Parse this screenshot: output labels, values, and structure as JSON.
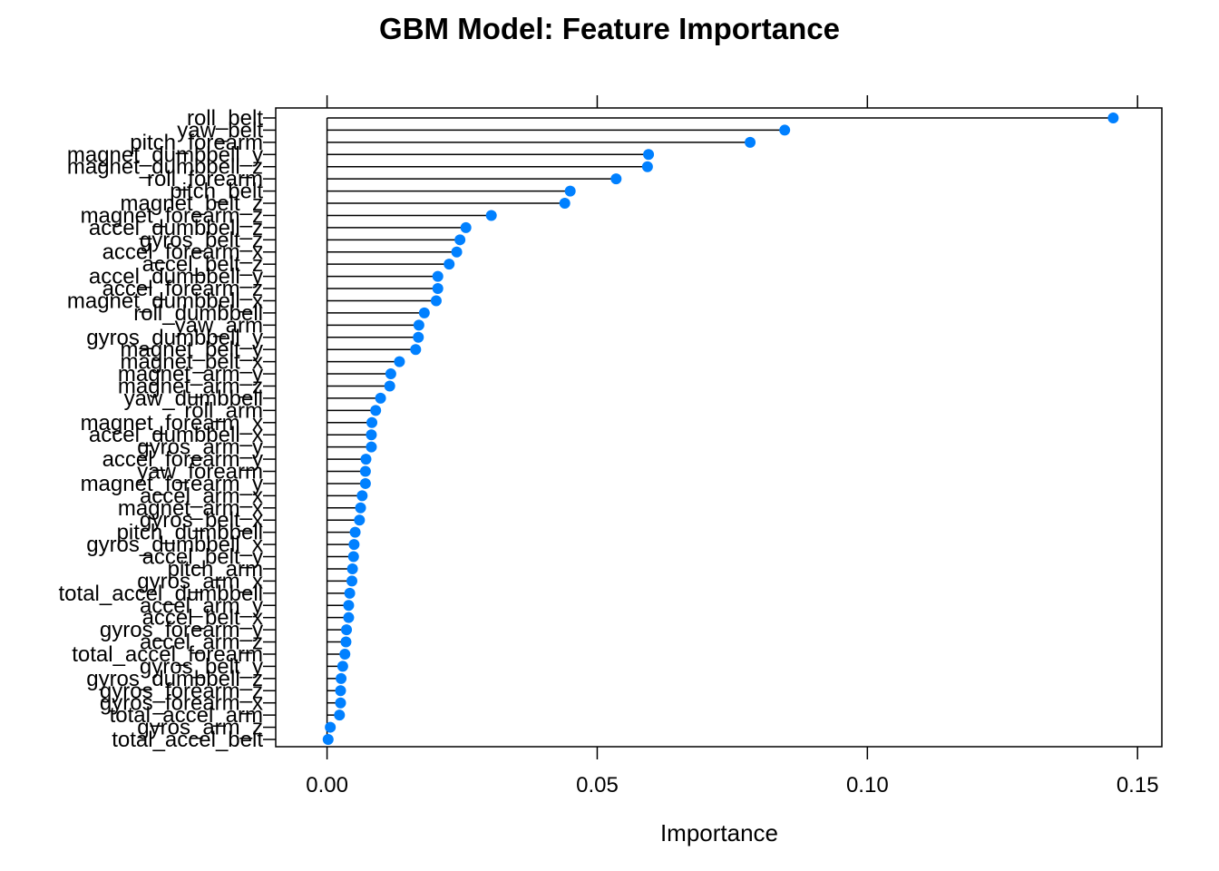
{
  "chart_data": {
    "type": "dot",
    "title": "GBM Model: Feature Importance",
    "xlabel": "Importance",
    "ylabel": "",
    "xlim": [
      -0.0095,
      0.1545
    ],
    "x_ticks": [
      "0.00",
      "0.05",
      "0.10",
      "0.15"
    ],
    "x_tick_values": [
      0,
      0.05,
      0.1,
      0.15
    ],
    "point_color": "#0080ff",
    "grid": false,
    "series": [
      {
        "categories": [
          "roll_belt",
          "yaw_belt",
          "pitch_forearm",
          "magnet_dumbbell_y",
          "magnet_dumbbell_z",
          "roll_forearm",
          "pitch_belt",
          "magnet_belt_z",
          "magnet_forearm_z",
          "accel_dumbbell_z",
          "gyros_belt_z",
          "accel_forearm_x",
          "accel_belt_z",
          "accel_dumbbell_y",
          "accel_forearm_z",
          "magnet_dumbbell_x",
          "roll_dumbbell",
          "yaw_arm",
          "gyros_dumbbell_y",
          "magnet_belt_y",
          "magnet_belt_x",
          "magnet_arm_y",
          "magnet_arm_z",
          "yaw_dumbbell",
          "roll_arm",
          "magnet_forearm_x",
          "accel_dumbbell_x",
          "gyros_arm_y",
          "accel_forearm_y",
          "yaw_forearm",
          "magnet_forearm_y",
          "accel_arm_x",
          "magnet_arm_x",
          "gyros_belt_x",
          "pitch_dumbbell",
          "gyros_dumbbell_x",
          "accel_belt_y",
          "pitch_arm",
          "gyros_arm_x",
          "total_accel_dumbbell",
          "accel_arm_y",
          "accel_belt_x",
          "gyros_forearm_y",
          "accel_arm_z",
          "total_accel_forearm",
          "gyros_belt_y",
          "gyros_dumbbell_z",
          "gyros_forearm_z",
          "gyros_forearm_x",
          "total_accel_arm",
          "gyros_arm_z",
          "total_accel_belt"
        ],
        "values": [
          0.1455,
          0.0847,
          0.0783,
          0.0595,
          0.0593,
          0.0535,
          0.045,
          0.044,
          0.0304,
          0.0257,
          0.0246,
          0.024,
          0.0226,
          0.0205,
          0.0205,
          0.0202,
          0.018,
          0.017,
          0.0169,
          0.0164,
          0.0134,
          0.0118,
          0.0116,
          0.0099,
          0.009,
          0.0083,
          0.0082,
          0.0082,
          0.0072,
          0.0071,
          0.0071,
          0.0065,
          0.0062,
          0.006,
          0.0052,
          0.005,
          0.0049,
          0.0047,
          0.0046,
          0.0042,
          0.004,
          0.004,
          0.0036,
          0.0035,
          0.0033,
          0.0029,
          0.0026,
          0.0025,
          0.0025,
          0.0023,
          0.0006,
          0.0002
        ]
      }
    ]
  }
}
